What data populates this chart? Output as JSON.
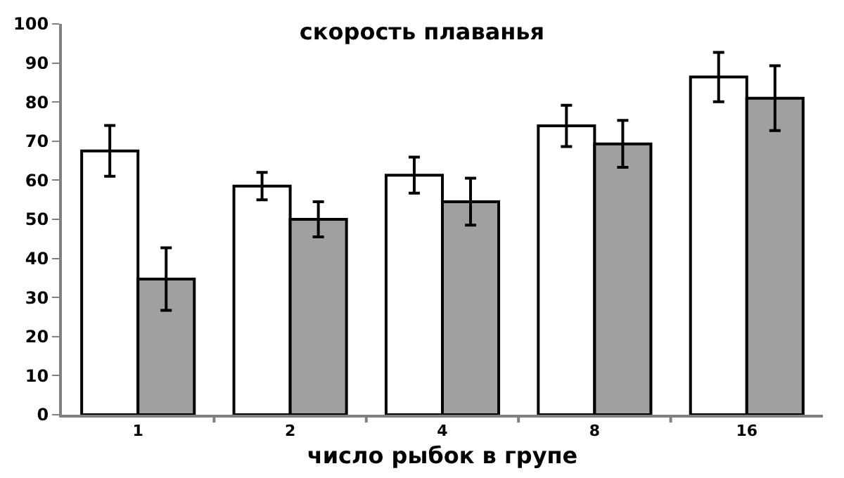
{
  "chart_data": {
    "type": "bar",
    "title": "скорость плаванья",
    "xlabel": "число рыбок в групе",
    "categories": [
      "1",
      "2",
      "4",
      "8",
      "16"
    ],
    "series": [
      {
        "color": "#ffffff",
        "values": [
          67.5,
          58.5,
          61.3,
          73.9,
          86.4
        ],
        "errors": [
          6.5,
          3.5,
          4.6,
          5.3,
          6.3
        ]
      },
      {
        "color": "#a0a0a0",
        "values": [
          34.7,
          50,
          54.5,
          69.3,
          81
        ],
        "errors": [
          8,
          4.5,
          6,
          6,
          8.3
        ]
      }
    ],
    "ylim": [
      0,
      100
    ],
    "yticks": [
      0,
      10,
      20,
      30,
      40,
      50,
      60,
      70,
      80,
      90,
      100
    ],
    "legend": false
  }
}
